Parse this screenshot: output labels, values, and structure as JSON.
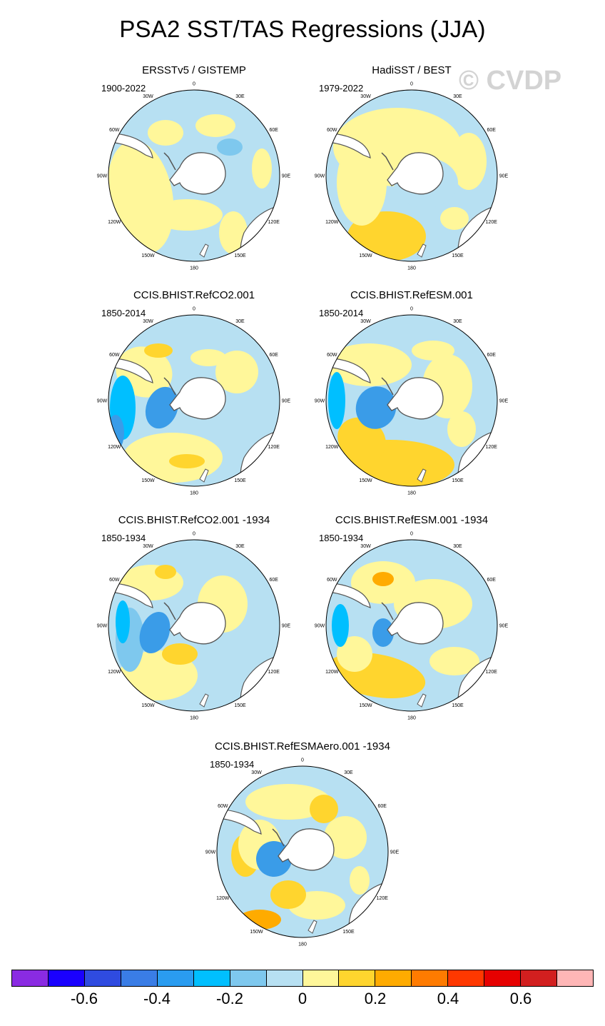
{
  "title": "PSA2 SST/TAS Regressions (JJA)",
  "watermark": "© CVDP",
  "longitude_labels": [
    "0",
    "30E",
    "60E",
    "90E",
    "120E",
    "150E",
    "180",
    "150W",
    "120W",
    "90W",
    "60W",
    "30W"
  ],
  "panels": [
    {
      "title": "ERSSTv5 / GISTEMP",
      "period": "1900-2022"
    },
    {
      "title": "HadiSST / BEST",
      "period": "1979-2022"
    },
    {
      "title": "CCIS.BHIST.RefCO2.001",
      "period": "1850-2014"
    },
    {
      "title": "CCIS.BHIST.RefESM.001",
      "period": "1850-2014"
    },
    {
      "title": "CCIS.BHIST.RefCO2.001 -1934",
      "period": "1850-1934"
    },
    {
      "title": "CCIS.BHIST.RefESM.001 -1934",
      "period": "1850-1934"
    },
    {
      "title": "CCIS.BHIST.RefESMAero.001 -1934",
      "period": "1850-1934"
    }
  ],
  "chart_data": {
    "type": "heatmap",
    "projection": "south polar stereographic",
    "colorbar": {
      "levels": [
        -0.7,
        -0.6,
        -0.5,
        -0.4,
        -0.3,
        -0.2,
        -0.1,
        0,
        0.1,
        0.2,
        0.3,
        0.4,
        0.5,
        0.6,
        0.7
      ],
      "tick_labels": [
        "-0.6",
        "-0.4",
        "-0.2",
        "0",
        "0.2",
        "0.4",
        "0.6"
      ],
      "tick_values": [
        -0.6,
        -0.4,
        -0.2,
        0,
        0.2,
        0.4,
        0.6
      ],
      "colors": [
        "#8a2be2",
        "#1a00ff",
        "#2f4be0",
        "#3a7de6",
        "#2a9cf0",
        "#00bfff",
        "#7ec8ee",
        "#b7e0f2",
        "#fff79a",
        "#ffd52e",
        "#ffab00",
        "#ff7b00",
        "#ff3800",
        "#e60000",
        "#d21f1f",
        "#ffb6b6"
      ]
    }
  }
}
